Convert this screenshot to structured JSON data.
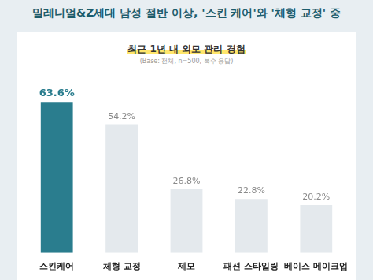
{
  "chart_data": {
    "type": "bar",
    "title": "밀레니얼&Z세대 남성 절반 이상, '스킨 케어'와 '체형 교정' 중",
    "subtitle": "최근 1년 내 외모 관리 경험",
    "annotations": [
      "(Base: 전체, n=500, 복수 응답)"
    ],
    "categories": [
      "스킨케어",
      "체형 교정",
      "제모",
      "패션 스타일링",
      "베이스 메이크업"
    ],
    "values": [
      63.6,
      54.2,
      26.8,
      22.8,
      20.2
    ],
    "value_labels": [
      "63.6%",
      "54.2%",
      "26.8%",
      "22.8%",
      "20.2%"
    ],
    "colors": [
      "#2a7d8e",
      "#e4e9ed",
      "#e4e9ed",
      "#e4e9ed",
      "#e4e9ed"
    ],
    "ylim": [
      0,
      70
    ],
    "grid": false,
    "data_labels": true,
    "tick_labels": "x"
  }
}
